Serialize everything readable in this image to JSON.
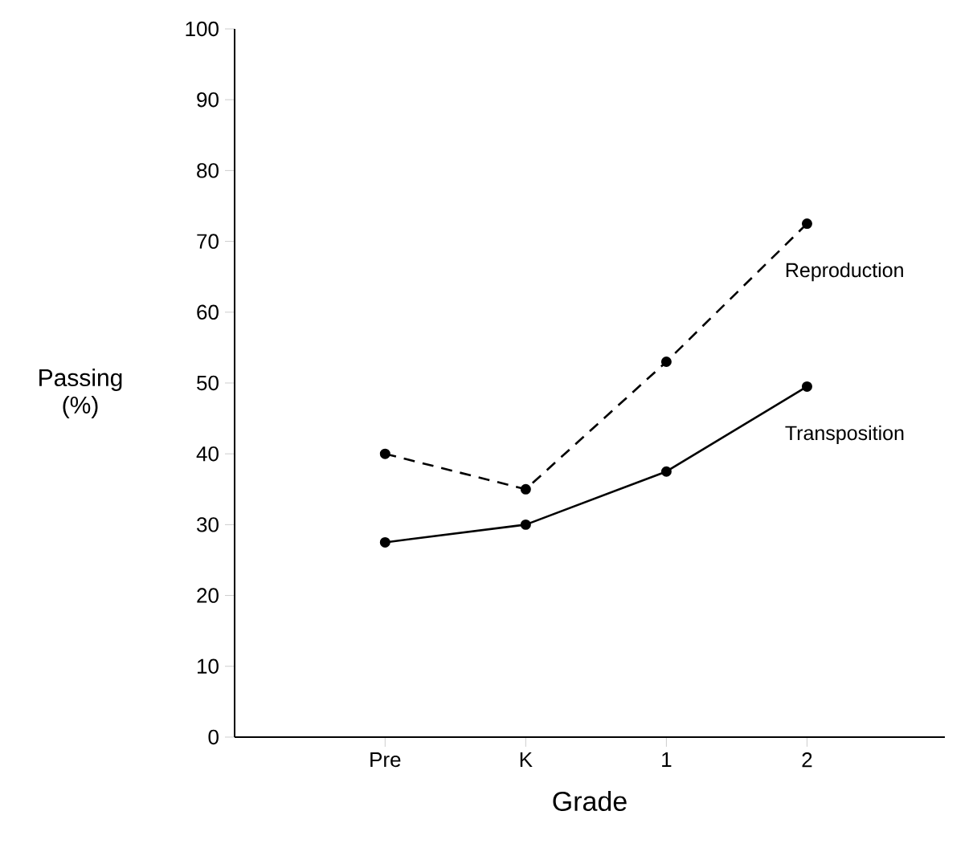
{
  "chart_data": {
    "type": "line",
    "xlabel": "Grade",
    "ylabel": "Passing (%)",
    "categories": [
      "Pre",
      "K",
      "1",
      "2"
    ],
    "ylim": [
      0,
      100
    ],
    "yticks": [
      0,
      10,
      20,
      30,
      40,
      50,
      60,
      70,
      80,
      90,
      100
    ],
    "marker": "circle",
    "series": [
      {
        "name": "Reproduction",
        "color": "#000000",
        "line_style": "dashed",
        "values": [
          40,
          35,
          53,
          72.5
        ]
      },
      {
        "name": "Transposition",
        "color": "#000000",
        "line_style": "solid",
        "values": [
          27.5,
          30,
          37.5,
          49.5
        ]
      }
    ]
  }
}
